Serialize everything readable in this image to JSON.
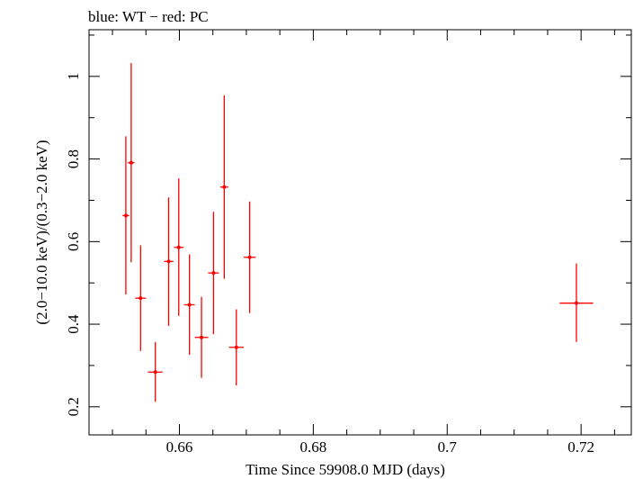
{
  "chart_data": {
    "type": "scatter",
    "title": "blue: WT − red: PC",
    "xlabel": "Time Since 59908.0 MJD (days)",
    "ylabel": "(2.0−10.0 keV)/(0.3−2.0 keV)",
    "xlim": [
      0.6465,
      0.7275
    ],
    "ylim": [
      0.132,
      1.113
    ],
    "x_ticks": [
      {
        "value": 0.66,
        "label": "0.66"
      },
      {
        "value": 0.68,
        "label": "0.68"
      },
      {
        "value": 0.7,
        "label": "0.7"
      },
      {
        "value": 0.72,
        "label": "0.72"
      }
    ],
    "y_ticks": [
      {
        "value": 0.2,
        "label": "0.2"
      },
      {
        "value": 0.4,
        "label": "0.4"
      },
      {
        "value": 0.6,
        "label": "0.6"
      },
      {
        "value": 0.8,
        "label": "0.8"
      },
      {
        "value": 1.0,
        "label": "1"
      }
    ],
    "grid": false,
    "series": [
      {
        "name": "PC",
        "color": "#ff0000",
        "points": [
          {
            "x": 0.652,
            "xerr": 0.0005,
            "y": 0.663,
            "yerr_low": 0.191,
            "yerr_high": 0.192
          },
          {
            "x": 0.6528,
            "xerr": 0.0005,
            "y": 0.791,
            "yerr_low": 0.241,
            "yerr_high": 0.241
          },
          {
            "x": 0.6542,
            "xerr": 0.0008,
            "y": 0.463,
            "yerr_low": 0.128,
            "yerr_high": 0.128
          },
          {
            "x": 0.6564,
            "xerr": 0.0011,
            "y": 0.284,
            "yerr_low": 0.072,
            "yerr_high": 0.073
          },
          {
            "x": 0.6584,
            "xerr": 0.0007,
            "y": 0.552,
            "yerr_low": 0.156,
            "yerr_high": 0.155
          },
          {
            "x": 0.6599,
            "xerr": 0.0007,
            "y": 0.586,
            "yerr_low": 0.166,
            "yerr_high": 0.167
          },
          {
            "x": 0.6615,
            "xerr": 0.0008,
            "y": 0.447,
            "yerr_low": 0.121,
            "yerr_high": 0.122
          },
          {
            "x": 0.6633,
            "xerr": 0.001,
            "y": 0.368,
            "yerr_low": 0.098,
            "yerr_high": 0.098
          },
          {
            "x": 0.6651,
            "xerr": 0.0008,
            "y": 0.524,
            "yerr_low": 0.148,
            "yerr_high": 0.148
          },
          {
            "x": 0.6667,
            "xerr": 0.0006,
            "y": 0.732,
            "yerr_low": 0.222,
            "yerr_high": 0.222
          },
          {
            "x": 0.6685,
            "xerr": 0.0011,
            "y": 0.344,
            "yerr_low": 0.092,
            "yerr_high": 0.092
          },
          {
            "x": 0.6705,
            "xerr": 0.0009,
            "y": 0.562,
            "yerr_low": 0.135,
            "yerr_high": 0.135
          },
          {
            "x": 0.7193,
            "xerr": 0.0025,
            "y": 0.451,
            "yerr_low": 0.094,
            "yerr_high": 0.096
          }
        ]
      }
    ]
  }
}
